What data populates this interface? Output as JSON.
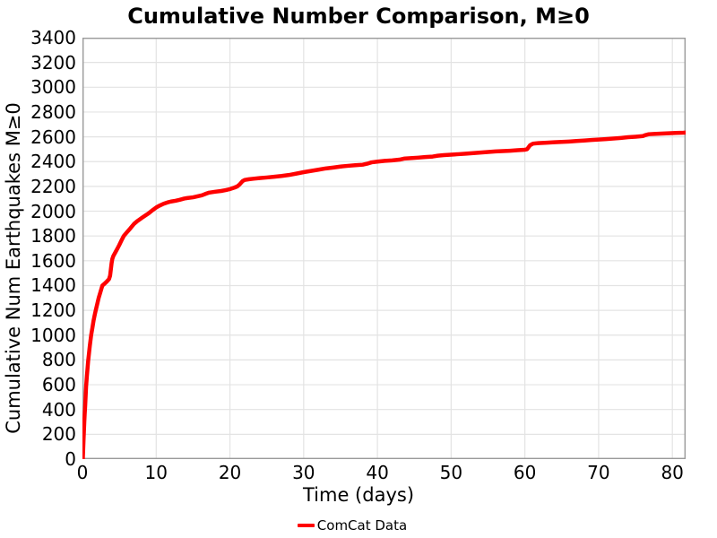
{
  "chart_data": {
    "type": "line",
    "title": "Cumulative Number Comparison, M≥0",
    "xlabel": "Time (days)",
    "ylabel": "Cumulative Num Earthquakes M≥0",
    "xlim": [
      0,
      81.8
    ],
    "ylim": [
      0,
      3400
    ],
    "xticks": [
      0,
      10,
      20,
      30,
      40,
      50,
      60,
      70,
      80
    ],
    "yticks": [
      0,
      200,
      400,
      600,
      800,
      1000,
      1200,
      1400,
      1600,
      1800,
      2000,
      2200,
      2400,
      2600,
      2800,
      3000,
      3200,
      3400
    ],
    "grid": true,
    "legend_position": "bottom-center",
    "series": [
      {
        "name": "ComCat Data",
        "color": "#ff0000",
        "points": [
          [
            0.05,
            0
          ],
          [
            0.1,
            80
          ],
          [
            0.15,
            160
          ],
          [
            0.2,
            230
          ],
          [
            0.25,
            300
          ],
          [
            0.3,
            360
          ],
          [
            0.36,
            420
          ],
          [
            0.45,
            530
          ],
          [
            0.5,
            590
          ],
          [
            0.6,
            670
          ],
          [
            0.77,
            790
          ],
          [
            0.9,
            860
          ],
          [
            1.0,
            915
          ],
          [
            1.18,
            1000
          ],
          [
            1.35,
            1060
          ],
          [
            1.5,
            1115
          ],
          [
            1.65,
            1160
          ],
          [
            1.8,
            1200
          ],
          [
            2.0,
            1250
          ],
          [
            2.2,
            1300
          ],
          [
            2.45,
            1350
          ],
          [
            2.7,
            1400
          ],
          [
            3.0,
            1415
          ],
          [
            3.3,
            1432
          ],
          [
            3.6,
            1452
          ],
          [
            3.75,
            1480
          ],
          [
            3.85,
            1530
          ],
          [
            3.95,
            1580
          ],
          [
            4.05,
            1615
          ],
          [
            4.2,
            1640
          ],
          [
            4.5,
            1672
          ],
          [
            4.8,
            1705
          ],
          [
            5.0,
            1728
          ],
          [
            5.3,
            1765
          ],
          [
            5.6,
            1800
          ],
          [
            6.0,
            1828
          ],
          [
            6.5,
            1862
          ],
          [
            7.0,
            1898
          ],
          [
            7.4,
            1918
          ],
          [
            8.0,
            1944
          ],
          [
            8.5,
            1964
          ],
          [
            9.0,
            1984
          ],
          [
            9.5,
            2008
          ],
          [
            10.0,
            2030
          ],
          [
            10.5,
            2046
          ],
          [
            11.0,
            2060
          ],
          [
            11.5,
            2070
          ],
          [
            12.0,
            2078
          ],
          [
            12.6,
            2084
          ],
          [
            13.2,
            2092
          ],
          [
            13.8,
            2102
          ],
          [
            14.2,
            2106
          ],
          [
            15.0,
            2112
          ],
          [
            15.6,
            2120
          ],
          [
            16.2,
            2128
          ],
          [
            16.8,
            2142
          ],
          [
            17.2,
            2150
          ],
          [
            18.0,
            2157
          ],
          [
            18.8,
            2163
          ],
          [
            19.4,
            2170
          ],
          [
            20.0,
            2178
          ],
          [
            20.6,
            2190
          ],
          [
            21.0,
            2200
          ],
          [
            21.3,
            2215
          ],
          [
            21.7,
            2242
          ],
          [
            22.0,
            2252
          ],
          [
            22.6,
            2258
          ],
          [
            23.2,
            2262
          ],
          [
            24.0,
            2267
          ],
          [
            25.0,
            2272
          ],
          [
            26.0,
            2278
          ],
          [
            27.0,
            2284
          ],
          [
            28.0,
            2292
          ],
          [
            29.0,
            2303
          ],
          [
            30.0,
            2315
          ],
          [
            31.0,
            2325
          ],
          [
            32.0,
            2335
          ],
          [
            33.0,
            2345
          ],
          [
            34.0,
            2352
          ],
          [
            35.0,
            2360
          ],
          [
            36.0,
            2366
          ],
          [
            37.0,
            2371
          ],
          [
            38.0,
            2375
          ],
          [
            38.6,
            2383
          ],
          [
            39.2,
            2394
          ],
          [
            40.0,
            2400
          ],
          [
            41.0,
            2406
          ],
          [
            42.0,
            2410
          ],
          [
            43.0,
            2416
          ],
          [
            43.6,
            2424
          ],
          [
            44.5,
            2428
          ],
          [
            45.5,
            2432
          ],
          [
            46.5,
            2437
          ],
          [
            47.5,
            2441
          ],
          [
            48.2,
            2448
          ],
          [
            49.0,
            2452
          ],
          [
            50.0,
            2456
          ],
          [
            51.0,
            2460
          ],
          [
            52.0,
            2464
          ],
          [
            53.0,
            2469
          ],
          [
            54.0,
            2473
          ],
          [
            55.0,
            2478
          ],
          [
            56.0,
            2482
          ],
          [
            57.0,
            2485
          ],
          [
            58.0,
            2488
          ],
          [
            59.0,
            2492
          ],
          [
            60.0,
            2496
          ],
          [
            60.3,
            2500
          ],
          [
            60.7,
            2532
          ],
          [
            61.1,
            2545
          ],
          [
            61.8,
            2549
          ],
          [
            63.0,
            2553
          ],
          [
            64.0,
            2556
          ],
          [
            65.0,
            2559
          ],
          [
            66.0,
            2562
          ],
          [
            67.0,
            2566
          ],
          [
            68.0,
            2570
          ],
          [
            69.0,
            2574
          ],
          [
            70.0,
            2578
          ],
          [
            71.0,
            2582
          ],
          [
            72.0,
            2586
          ],
          [
            73.0,
            2591
          ],
          [
            74.0,
            2597
          ],
          [
            75.0,
            2601
          ],
          [
            76.0,
            2606
          ],
          [
            76.4,
            2615
          ],
          [
            76.8,
            2621
          ],
          [
            77.5,
            2623
          ],
          [
            78.5,
            2626
          ],
          [
            79.5,
            2629
          ],
          [
            80.5,
            2631
          ],
          [
            81.5,
            2633
          ],
          [
            81.8,
            2634
          ]
        ]
      }
    ]
  },
  "colors": {
    "line": "#ff0000",
    "grid": "#e3e3e3",
    "spine": "#9a9a9a",
    "text": "#000000",
    "background": "#ffffff"
  }
}
